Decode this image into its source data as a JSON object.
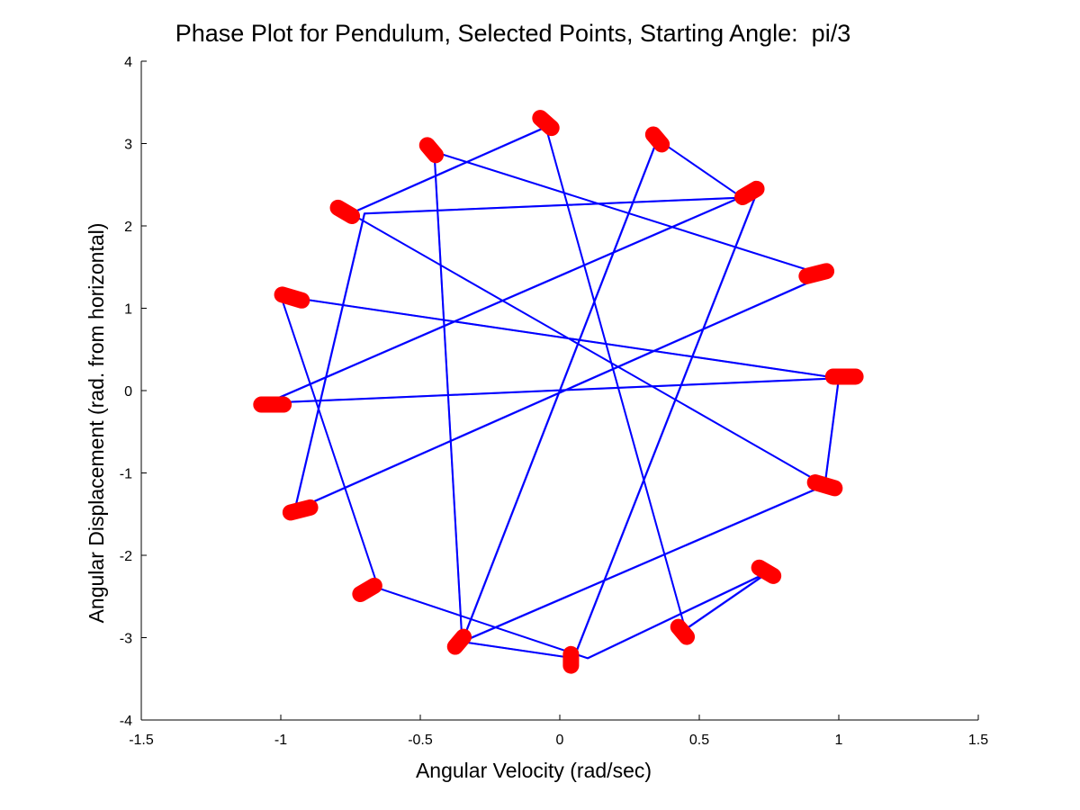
{
  "chart_data": {
    "type": "scatter",
    "title": "Phase Plot for Pendulum, Selected Points, Starting Angle:  pi/3",
    "xlabel": "Angular Velocity (rad/sec)",
    "ylabel": "Angular Displacement (rad. from horizontal)",
    "xlim": [
      -1.5,
      1.5
    ],
    "ylim": [
      -4,
      4
    ],
    "xticks": [
      -1.5,
      -1,
      -0.5,
      0,
      0.5,
      1,
      1.5
    ],
    "xtick_labels": [
      "-1.5",
      "-1",
      "-0.5",
      "0",
      "0.5",
      "1",
      "1.5"
    ],
    "yticks": [
      -4,
      -3,
      -2,
      -1,
      0,
      1,
      2,
      3,
      4
    ],
    "ytick_labels": [
      "-4",
      "-3",
      "-2",
      "-1",
      "0",
      "1",
      "2",
      "3",
      "4"
    ],
    "grid": false,
    "series": [
      {
        "style": "line",
        "color": "#0000ff",
        "x": [
          -0.05,
          0.45,
          0.75,
          0.1,
          -0.65,
          -1.0,
          1.0,
          0.95,
          -0.35,
          -0.45,
          0.95,
          -0.95,
          -0.7,
          0.7,
          0.05,
          -0.35,
          0.35,
          0.65,
          -1.05,
          1.0,
          0.95,
          -0.75,
          -0.05
        ],
        "y": [
          3.2,
          -2.9,
          -2.2,
          -3.25,
          -2.4,
          1.15,
          0.15,
          -1.15,
          -3.05,
          2.9,
          1.4,
          -1.45,
          2.15,
          2.35,
          -3.25,
          -3.05,
          3.05,
          2.35,
          -0.15,
          0.15,
          -1.15,
          2.15,
          3.2
        ]
      },
      {
        "style": "markers",
        "color": "#ff0000",
        "x": [
          -0.05,
          0.35,
          0.68,
          0.92,
          1.02,
          0.95,
          0.74,
          0.44,
          0.04,
          -0.36,
          -0.69,
          -0.93,
          -1.03,
          -0.96,
          -0.77,
          -0.46
        ],
        "y": [
          3.25,
          3.05,
          2.4,
          1.42,
          0.17,
          -1.15,
          -2.2,
          -2.93,
          -3.27,
          -3.05,
          -2.42,
          -1.45,
          -0.17,
          1.13,
          2.17,
          2.92
        ],
        "smear": [
          [
            0.02,
            -0.06
          ],
          [
            0.015,
            -0.06
          ],
          [
            0.025,
            0.05
          ],
          [
            0.035,
            0.03
          ],
          [
            0.04,
            0.0
          ],
          [
            0.035,
            -0.035
          ],
          [
            0.025,
            -0.05
          ],
          [
            0.015,
            -0.06
          ],
          [
            0.0,
            -0.07
          ],
          [
            -0.015,
            -0.06
          ],
          [
            -0.025,
            -0.05
          ],
          [
            -0.035,
            -0.03
          ],
          [
            -0.04,
            0.0
          ],
          [
            -0.035,
            0.035
          ],
          [
            -0.025,
            0.05
          ],
          [
            -0.015,
            0.06
          ]
        ]
      }
    ]
  }
}
